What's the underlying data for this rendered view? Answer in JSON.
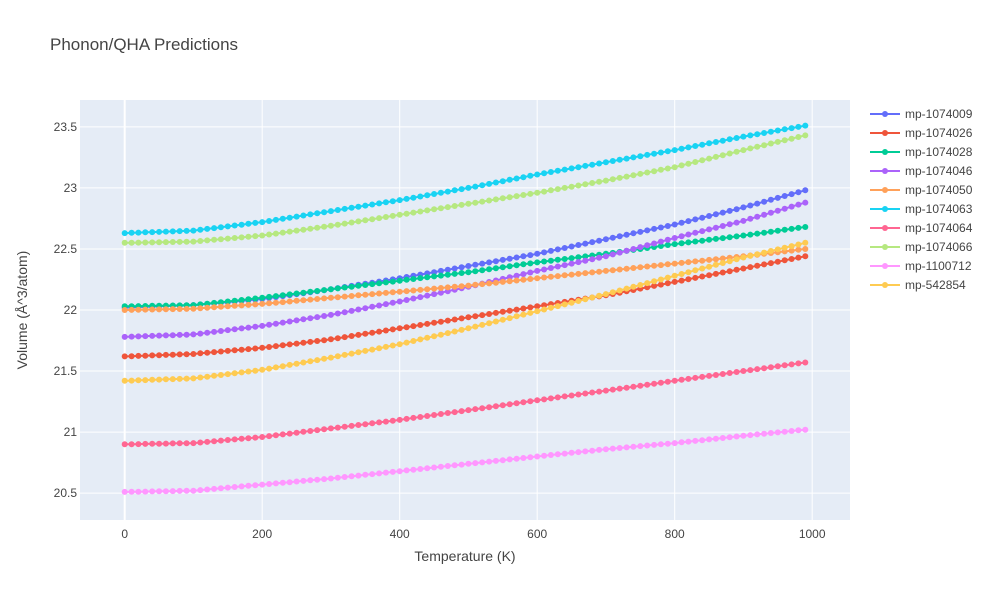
{
  "chart_data": {
    "type": "line",
    "title": "Phonon/QHA Predictions",
    "xlabel": "Temperature (K)",
    "ylabel": "Volume (Å^3/atom)",
    "xlim": [
      -65,
      1055
    ],
    "ylim": [
      20.28,
      23.72
    ],
    "x_ticks": [
      0,
      200,
      400,
      600,
      800,
      1000
    ],
    "y_ticks": [
      20.5,
      21,
      21.5,
      22,
      22.5,
      23,
      23.5
    ],
    "grid": true,
    "legend": "right",
    "x_range": [
      0,
      990
    ],
    "n_points": 100,
    "series": [
      {
        "name": "mp-1074009",
        "color": "#636efa",
        "anchors": [
          [
            0,
            22.02
          ],
          [
            100,
            22.04
          ],
          [
            200,
            22.09
          ],
          [
            300,
            22.17
          ],
          [
            400,
            22.26
          ],
          [
            500,
            22.36
          ],
          [
            600,
            22.46
          ],
          [
            700,
            22.58
          ],
          [
            800,
            22.7
          ],
          [
            900,
            22.84
          ],
          [
            990,
            22.98
          ]
        ]
      },
      {
        "name": "mp-1074026",
        "color": "#EF553B",
        "anchors": [
          [
            0,
            21.62
          ],
          [
            100,
            21.64
          ],
          [
            200,
            21.69
          ],
          [
            300,
            21.76
          ],
          [
            400,
            21.85
          ],
          [
            500,
            21.94
          ],
          [
            600,
            22.03
          ],
          [
            700,
            22.12
          ],
          [
            800,
            22.23
          ],
          [
            900,
            22.34
          ],
          [
            990,
            22.44
          ]
        ]
      },
      {
        "name": "mp-1074028",
        "color": "#00cc96",
        "anchors": [
          [
            0,
            22.03
          ],
          [
            100,
            22.04
          ],
          [
            200,
            22.1
          ],
          [
            300,
            22.17
          ],
          [
            400,
            22.24
          ],
          [
            500,
            22.31
          ],
          [
            600,
            22.39
          ],
          [
            700,
            22.46
          ],
          [
            800,
            22.54
          ],
          [
            900,
            22.61
          ],
          [
            990,
            22.68
          ]
        ]
      },
      {
        "name": "mp-1074046",
        "color": "#ab63fa",
        "anchors": [
          [
            0,
            21.78
          ],
          [
            100,
            21.8
          ],
          [
            200,
            21.87
          ],
          [
            300,
            21.96
          ],
          [
            400,
            22.07
          ],
          [
            500,
            22.19
          ],
          [
            600,
            22.32
          ],
          [
            700,
            22.44
          ],
          [
            800,
            22.59
          ],
          [
            900,
            22.73
          ],
          [
            990,
            22.88
          ]
        ]
      },
      {
        "name": "mp-1074050",
        "color": "#FFA15A",
        "anchors": [
          [
            0,
            22.0
          ],
          [
            100,
            22.01
          ],
          [
            200,
            22.05
          ],
          [
            300,
            22.1
          ],
          [
            400,
            22.15
          ],
          [
            500,
            22.2
          ],
          [
            600,
            22.26
          ],
          [
            700,
            22.32
          ],
          [
            800,
            22.38
          ],
          [
            900,
            22.44
          ],
          [
            990,
            22.5
          ]
        ]
      },
      {
        "name": "mp-1074063",
        "color": "#19d3f3",
        "anchors": [
          [
            0,
            22.63
          ],
          [
            100,
            22.65
          ],
          [
            200,
            22.72
          ],
          [
            300,
            22.81
          ],
          [
            400,
            22.9
          ],
          [
            500,
            23.0
          ],
          [
            600,
            23.11
          ],
          [
            700,
            23.21
          ],
          [
            800,
            23.31
          ],
          [
            900,
            23.42
          ],
          [
            990,
            23.51
          ]
        ]
      },
      {
        "name": "mp-1074064",
        "color": "#FF6692",
        "anchors": [
          [
            0,
            20.9
          ],
          [
            100,
            20.91
          ],
          [
            200,
            20.96
          ],
          [
            300,
            21.03
          ],
          [
            400,
            21.1
          ],
          [
            500,
            21.18
          ],
          [
            600,
            21.26
          ],
          [
            700,
            21.34
          ],
          [
            800,
            21.42
          ],
          [
            900,
            21.5
          ],
          [
            990,
            21.57
          ]
        ]
      },
      {
        "name": "mp-1074066",
        "color": "#B6E880",
        "anchors": [
          [
            0,
            22.55
          ],
          [
            100,
            22.56
          ],
          [
            200,
            22.61
          ],
          [
            300,
            22.69
          ],
          [
            400,
            22.78
          ],
          [
            500,
            22.87
          ],
          [
            600,
            22.96
          ],
          [
            700,
            23.06
          ],
          [
            800,
            23.17
          ],
          [
            900,
            23.31
          ],
          [
            990,
            23.43
          ]
        ]
      },
      {
        "name": "mp-1100712",
        "color": "#FF97FF",
        "anchors": [
          [
            0,
            20.51
          ],
          [
            100,
            20.52
          ],
          [
            200,
            20.57
          ],
          [
            300,
            20.62
          ],
          [
            400,
            20.68
          ],
          [
            500,
            20.74
          ],
          [
            600,
            20.8
          ],
          [
            700,
            20.86
          ],
          [
            800,
            20.91
          ],
          [
            900,
            20.97
          ],
          [
            990,
            21.02
          ]
        ]
      },
      {
        "name": "mp-542854",
        "color": "#FECB52",
        "anchors": [
          [
            0,
            21.42
          ],
          [
            100,
            21.44
          ],
          [
            200,
            21.51
          ],
          [
            300,
            21.61
          ],
          [
            400,
            21.72
          ],
          [
            500,
            21.85
          ],
          [
            600,
            21.99
          ],
          [
            700,
            22.13
          ],
          [
            800,
            22.28
          ],
          [
            900,
            22.43
          ],
          [
            990,
            22.55
          ]
        ]
      }
    ]
  }
}
